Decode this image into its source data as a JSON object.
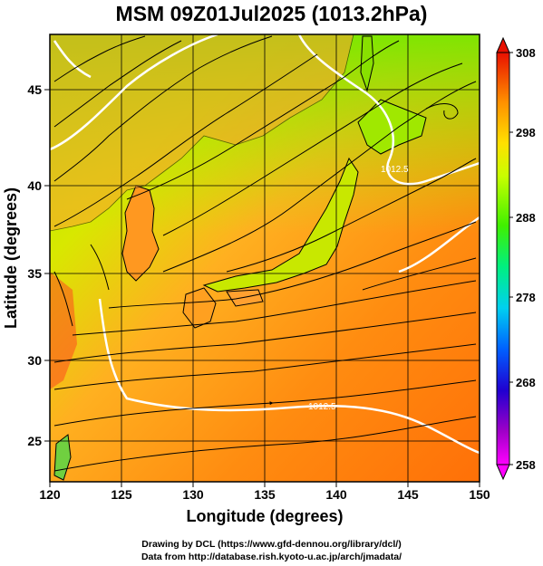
{
  "title": "MSM 09Z01Jul2025 (1013.2hPa)",
  "map": {
    "lon_range": [
      120,
      150
    ],
    "lat_range": [
      22.4,
      47.6
    ],
    "x_ticks": [
      "120",
      "125",
      "130",
      "135",
      "140",
      "145",
      "150"
    ],
    "y_ticks": [
      "25",
      "30",
      "35",
      "40",
      "45"
    ],
    "xlabel": "Longitude (degrees)",
    "ylabel": "Latitude  (degrees)",
    "isobar_labels": [
      "1012.5",
      "1012.5"
    ],
    "colors": {
      "warm": "#ff7a10",
      "mid": "#ffcc00",
      "cool": "#80ff00",
      "land": "#60d060",
      "isobar": "#ffffff",
      "streamline": "#000000"
    }
  },
  "colorbar": {
    "ticks": [
      "308",
      "298",
      "288",
      "278",
      "268",
      "258"
    ],
    "min": 258,
    "max": 308,
    "colors": [
      "#ff00ff",
      "#b000c0",
      "#4000c0",
      "#0000ff",
      "#0080ff",
      "#00e0e0",
      "#00ff80",
      "#40ff00",
      "#a0ff00",
      "#e8ff00",
      "#ffcc00",
      "#ff8000",
      "#ff4000",
      "#e00000"
    ]
  },
  "credits": {
    "line1": "Drawing by DCL (https://www.gfd-dennou.org/library/dcl/)",
    "line2": "Data from http://database.rish.kyoto-u.ac.jp/arch/jmadata/"
  }
}
